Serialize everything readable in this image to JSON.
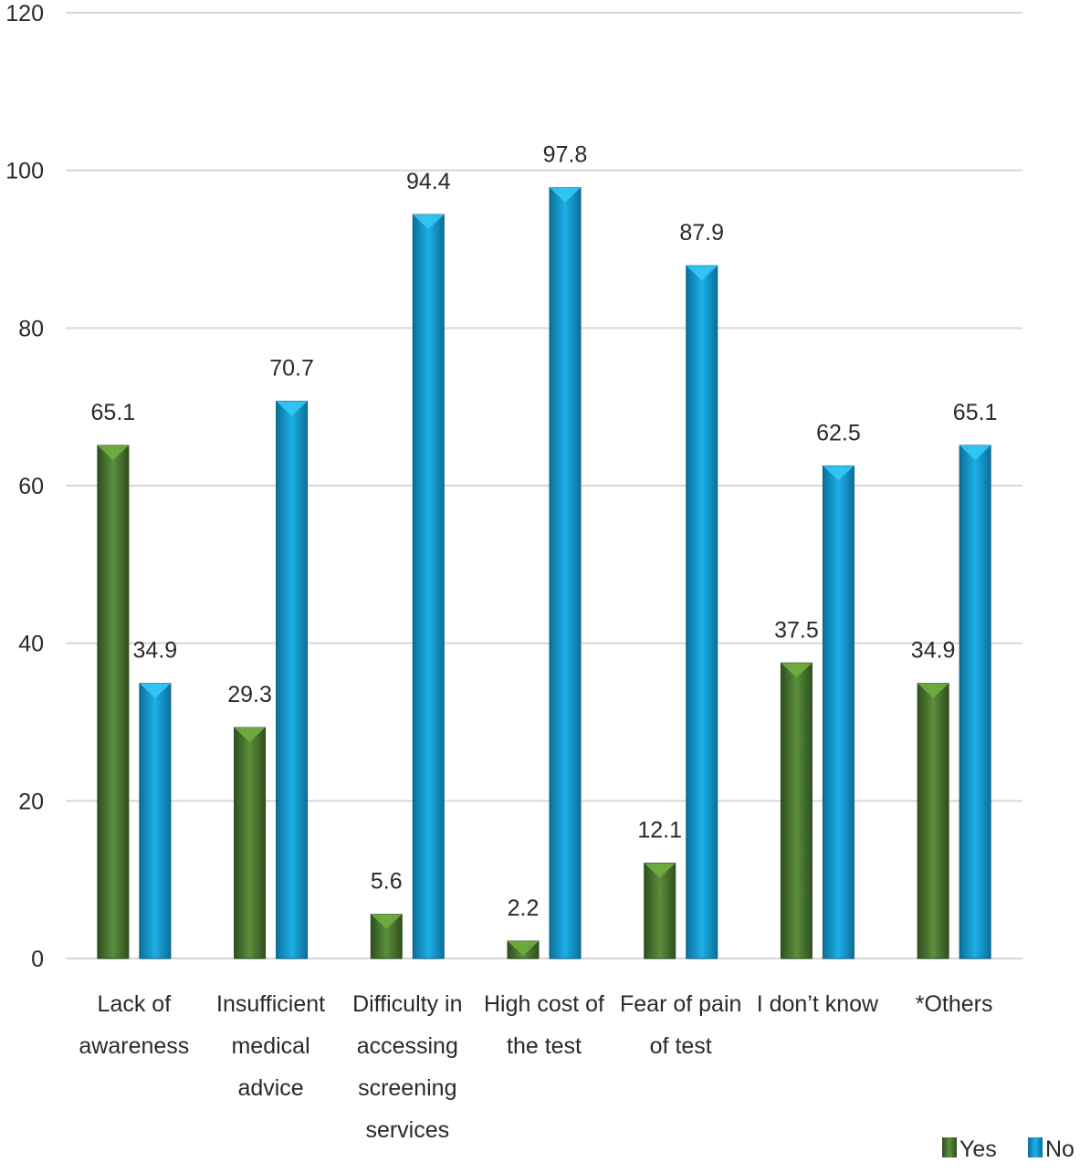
{
  "chart_data": {
    "type": "bar",
    "categories": [
      [
        "Lack of",
        "awareness"
      ],
      [
        "Insufficient",
        "medical",
        "advice"
      ],
      [
        "Difficulty in",
        "accessing",
        "screening",
        "services"
      ],
      [
        "High cost of",
        "the test"
      ],
      [
        "Fear of pain",
        "of test"
      ],
      [
        "I don’t know"
      ],
      [
        "*Others"
      ]
    ],
    "series": [
      {
        "name": "Yes",
        "values": [
          65.1,
          29.3,
          5.6,
          2.2,
          12.1,
          37.5,
          34.9
        ],
        "color": "#4e7d34"
      },
      {
        "name": "No",
        "values": [
          34.9,
          70.7,
          94.4,
          97.8,
          87.9,
          62.5,
          65.1
        ],
        "color": "#139fd6"
      }
    ],
    "ylim": [
      0,
      120
    ],
    "yticks": [
      0,
      20,
      40,
      60,
      80,
      100,
      120
    ],
    "grid": true,
    "legend": "bottom-right",
    "title": "",
    "xlabel": "",
    "ylabel": ""
  }
}
